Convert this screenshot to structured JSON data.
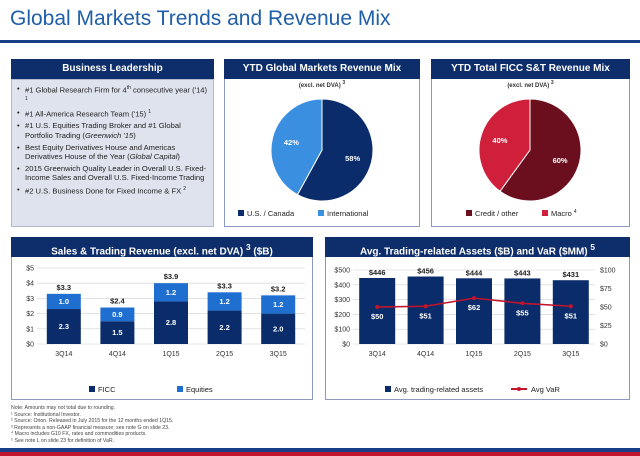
{
  "page": {
    "title": "Global Markets Trends and Revenue Mix"
  },
  "leadership": {
    "header": "Business Leadership",
    "items": [
      [
        "#1 Global Research Firm for 4",
        "th",
        " consecutive year ('14) ",
        "1"
      ],
      [
        "#1 All-America Research Team ('15) ",
        "1"
      ],
      [
        "#1 U.S. Equities Trading Broker and #1 Global Portfolio Trading (",
        "Greenwich '15",
        ")"
      ],
      [
        "Best Equity Derivatives House and Americas Derivatives House of the Year (",
        "Global Capital",
        ")"
      ],
      [
        "2015 Greenwich Quality Leader in Overall U.S. Fixed-Income Sales and Overall U.S. Fixed-Income Trading"
      ],
      [
        "#2 U.S. Business Done for Fixed Income & FX ",
        "2"
      ]
    ]
  },
  "pie1": {
    "header": "YTD Global Markets Revenue Mix",
    "sub": "(excl. net DVA) ",
    "sub_sup": "3",
    "legend": [
      "U.S. / Canada",
      "International"
    ]
  },
  "pie2": {
    "header": "YTD Total FICC S&T Revenue Mix",
    "sub": "(excl. net DVA) ",
    "sub_sup": "3",
    "legend": [
      "Credit / other",
      "Macro "
    ],
    "legend_sup": "4"
  },
  "sales": {
    "header": "Sales & Trading Revenue (excl. net DVA) ",
    "header_sup": "3",
    "header_tail": " ($B)",
    "legend": [
      "FICC",
      "Equities"
    ]
  },
  "assets": {
    "header": "Avg. Trading-related Assets ($B) and VaR ($MM) ",
    "header_sup": "5",
    "legend": [
      "Avg. trading-related assets",
      "Avg VaR"
    ]
  },
  "colors": {
    "navy": "#0b2c6b",
    "blue": "#1f6fd1",
    "lightblue": "#3a8fe0",
    "maroon": "#6b0f1f",
    "crimson": "#d01f3a",
    "varline": "#c2152b"
  },
  "footnotes": [
    "Note: Amounts may not total due to rounding.",
    "¹ Source: Institutional Investor.",
    "² Source: Orion. Released in July 2015 for the 12 months ended 1Q15.",
    "³ Represents a non-GAAP financial measure; see note G on slide 23.",
    "⁴ Macro includes G10 FX, rates and commodities products.",
    "⁵ See note L on slide 23 for definition of VaR."
  ],
  "chart_data": [
    {
      "type": "pie",
      "title": "YTD Global Markets Revenue Mix",
      "labels": [
        "U.S. / Canada",
        "International"
      ],
      "values": [
        58,
        42
      ],
      "value_labels": [
        "58%",
        "42%"
      ]
    },
    {
      "type": "pie",
      "title": "YTD Total FICC S&T Revenue Mix",
      "labels": [
        "Credit / other",
        "Macro"
      ],
      "values": [
        60,
        40
      ],
      "value_labels": [
        "60%",
        "40%"
      ]
    },
    {
      "type": "bar",
      "title": "Sales & Trading Revenue (excl. net DVA) 3 ($B)",
      "stacked": true,
      "categories": [
        "3Q14",
        "4Q14",
        "1Q15",
        "2Q15",
        "3Q15"
      ],
      "series": [
        {
          "name": "FICC",
          "values": [
            2.3,
            1.5,
            2.8,
            2.2,
            2.0
          ],
          "labels": [
            "2.3",
            "1.5",
            "2.8",
            "2.2",
            "2.0"
          ]
        },
        {
          "name": "Equities",
          "values": [
            1.0,
            0.9,
            1.2,
            1.2,
            1.2
          ],
          "labels": [
            "1.0",
            "0.9",
            "1.2",
            "1.2",
            "1.2"
          ]
        }
      ],
      "totals": [
        "$3.3",
        "$2.4",
        "$3.9",
        "$3.3",
        "$3.2"
      ],
      "ylim": [
        0,
        5
      ],
      "yticks": [
        "$0",
        "$1",
        "$2",
        "$3",
        "$4",
        "$5"
      ],
      "legend": "bottom"
    },
    {
      "type": "bar",
      "title": "Avg. Trading-related Assets ($B) and VaR ($MM) 5",
      "categories": [
        "3Q14",
        "4Q14",
        "1Q15",
        "2Q15",
        "3Q15"
      ],
      "series": [
        {
          "name": "Avg. trading-related assets",
          "type": "bar",
          "axis": "left",
          "values": [
            446,
            456,
            444,
            443,
            431
          ],
          "labels": [
            "$446",
            "$456",
            "$444",
            "$443",
            "$431"
          ]
        },
        {
          "name": "Avg VaR",
          "type": "line",
          "axis": "right",
          "values": [
            50,
            51,
            62,
            55,
            51
          ],
          "labels": [
            "$50",
            "$51",
            "$62",
            "$55",
            "$51"
          ]
        }
      ],
      "ylim": [
        0,
        500
      ],
      "yticks": [
        "$0",
        "$100",
        "$200",
        "$300",
        "$400",
        "$500"
      ],
      "y2lim": [
        0,
        100
      ],
      "y2ticks": [
        "$0",
        "$25",
        "$50",
        "$75",
        "$100"
      ],
      "legend": "bottom"
    }
  ]
}
